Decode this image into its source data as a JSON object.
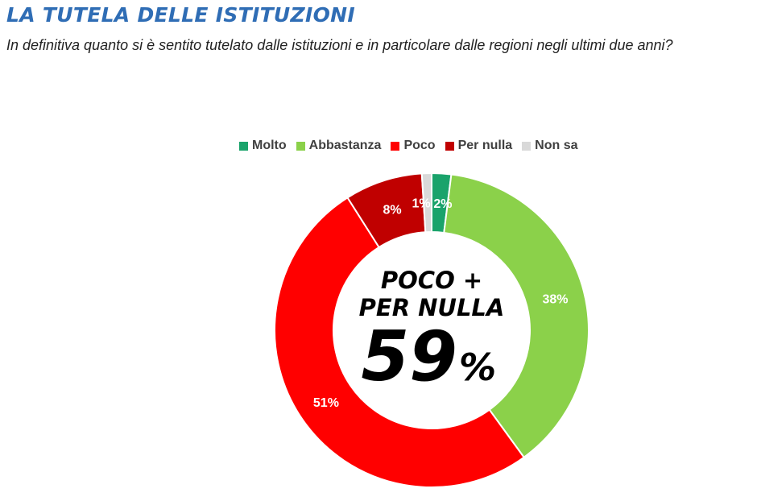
{
  "title": "LA TUTELA DELLE ISTITUZIONI",
  "subtitle": "In definitiva quanto si è sentito tutelato dalle istituzioni e in particolare dalle regioni negli ultimi due anni?",
  "center": {
    "line1": "POCO +",
    "line2": "PER NULLA",
    "value": "59",
    "suffix": "%"
  },
  "chart_data": {
    "type": "pie",
    "donut": true,
    "legend_position": "top",
    "start": "top, clockwise",
    "categories": [
      "Molto",
      "Abbastanza",
      "Poco",
      "Per nulla",
      "Non sa"
    ],
    "values": [
      2,
      38,
      51,
      8,
      1
    ],
    "labels": [
      "2%",
      "38%",
      "51%",
      "8%",
      "1%"
    ],
    "colors": [
      "#1aa36b",
      "#8bd14a",
      "#ff0000",
      "#c00000",
      "#d9d9d9"
    ]
  }
}
